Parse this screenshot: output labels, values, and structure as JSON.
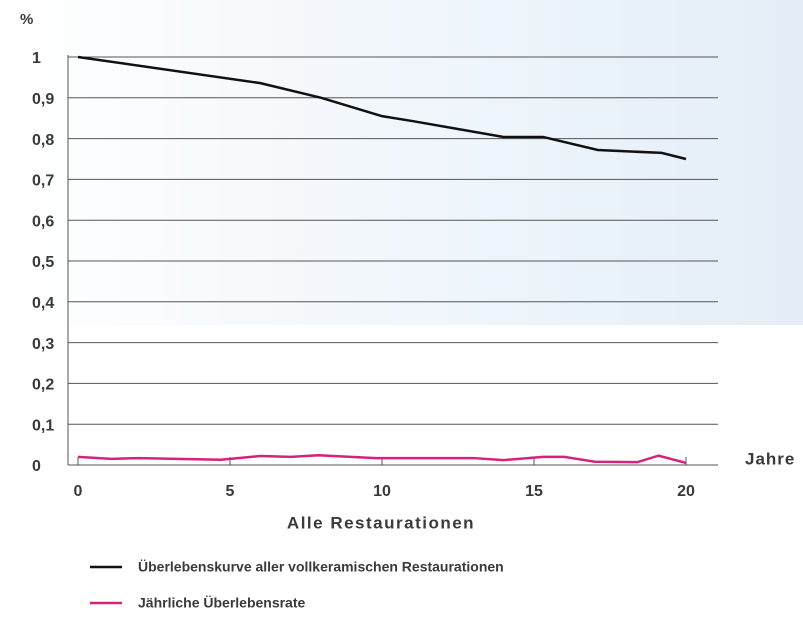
{
  "chart_data": {
    "type": "line",
    "y_axis_label": "%",
    "x_axis_unit": "Jahre",
    "x_axis_label": "Alle Restaurationen",
    "xlim": [
      0,
      20
    ],
    "xticks": [
      0,
      5,
      10,
      15,
      20
    ],
    "ylim": [
      0,
      1
    ],
    "yticks": [
      0,
      {
        "value": 0.1,
        "label": "0,1"
      },
      {
        "value": 0.2,
        "label": "0,2"
      },
      {
        "value": 0.3,
        "label": "0,3"
      },
      {
        "value": 0.4,
        "label": "0,4"
      },
      {
        "value": 0.5,
        "label": "0,5"
      },
      {
        "value": 0.6,
        "label": "0,6"
      },
      {
        "value": 0.7,
        "label": "0,7"
      },
      {
        "value": 0.8,
        "label": "0,8"
      },
      {
        "value": 0.9,
        "label": "0,9"
      },
      1
    ],
    "grid": true,
    "series": [
      {
        "name": "Überlebenskurve aller vollkeramischen Restaurationen",
        "color": "#111111",
        "x": [
          0,
          6,
          8,
          10,
          11,
          14,
          15.3,
          17.1,
          19.2,
          20
        ],
        "values": [
          1.0,
          0.936,
          0.9,
          0.855,
          0.843,
          0.804,
          0.804,
          0.772,
          0.765,
          0.75
        ]
      },
      {
        "name": "Jährliche Überlebensrate",
        "color": "#d4237a",
        "x": [
          0,
          1.1,
          2,
          4.7,
          6,
          7,
          7.9,
          9.8,
          13,
          14,
          15.3,
          16,
          17,
          18.4,
          19.1,
          20
        ],
        "values": [
          0.02,
          0.015,
          0.017,
          0.013,
          0.022,
          0.02,
          0.024,
          0.017,
          0.017,
          0.012,
          0.02,
          0.02,
          0.008,
          0.007,
          0.023,
          0.005
        ]
      }
    ]
  }
}
